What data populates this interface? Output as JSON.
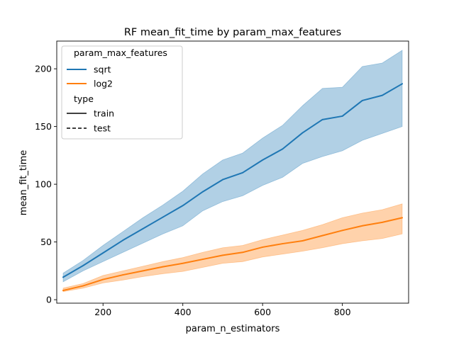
{
  "chart_data": {
    "type": "line",
    "title": "RF mean_fit_time by param_max_features",
    "xlabel": "param_n_estimators",
    "ylabel": "mean_fit_time",
    "xlim": [
      84,
      966
    ],
    "ylim": [
      -3,
      224
    ],
    "xticks": [
      200,
      400,
      600,
      800
    ],
    "yticks": [
      0,
      50,
      100,
      150,
      200
    ],
    "grid": false,
    "legend": {
      "placement": "top-left",
      "hue_title": "param_max_features",
      "style_title": "type",
      "style_entries": [
        {
          "label": "train",
          "dash": "solid"
        },
        {
          "label": "test",
          "dash": "dashed"
        }
      ]
    },
    "x": [
      100,
      150,
      200,
      250,
      300,
      350,
      400,
      450,
      500,
      550,
      600,
      650,
      700,
      750,
      800,
      850,
      900,
      950
    ],
    "series": [
      {
        "name": "sqrt",
        "color": "#1f77b4",
        "values": [
          19.5,
          29.5,
          40.5,
          51.5,
          61.5,
          71.5,
          81.5,
          93.5,
          104,
          110,
          121,
          130.5,
          144.5,
          156,
          159,
          172.5,
          177,
          187
        ],
        "upper": [
          23,
          34,
          47,
          59,
          71,
          82,
          94,
          109,
          121,
          127,
          140,
          151,
          168,
          183,
          184,
          202,
          205,
          216
        ],
        "lower": [
          15.5,
          25,
          33,
          41,
          49,
          57,
          64,
          77,
          85,
          90,
          99,
          106,
          118,
          124,
          129,
          138,
          144,
          150
        ]
      },
      {
        "name": "log2",
        "color": "#ff7f0e",
        "values": [
          8,
          12,
          17.5,
          21.5,
          25,
          28.5,
          31.5,
          35,
          38.5,
          41,
          45.5,
          48.5,
          51,
          55.5,
          60,
          64,
          67,
          71
        ],
        "upper": [
          10,
          14,
          21,
          25,
          29,
          33,
          36.5,
          41,
          45,
          47,
          52,
          56,
          60,
          65,
          71,
          75,
          78,
          83
        ],
        "lower": [
          7,
          10,
          14.5,
          17,
          20,
          22.5,
          24.5,
          28,
          31.5,
          33,
          37,
          39.5,
          42,
          45,
          48.5,
          51,
          53,
          57
        ]
      }
    ]
  }
}
